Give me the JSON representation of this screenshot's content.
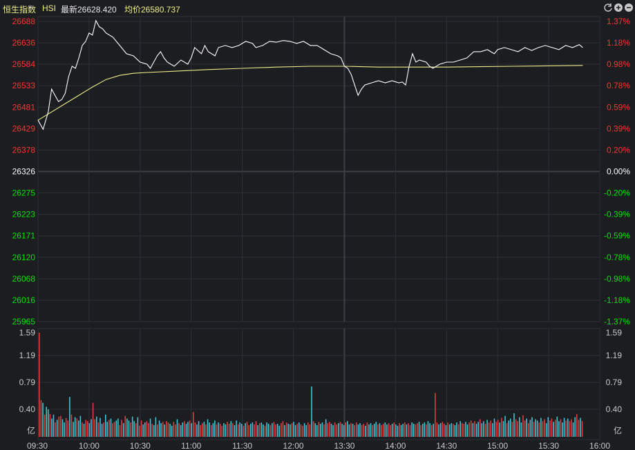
{
  "header": {
    "name": "恒生指数",
    "code": "HSI",
    "latest": "最新26628.420",
    "average": "均价26580.737"
  },
  "colors": {
    "up": "#ff3232",
    "down": "#00e600",
    "neutral": "#ffffff",
    "price_line": "#ffffff",
    "avg_line": "#f0f08c",
    "vol_up": "#e04040",
    "vol_down": "#40c8d8",
    "grid": "#2e3036"
  },
  "chart_data": [
    {
      "type": "line",
      "title": "恒生指数 HSI",
      "prev_close": 26326,
      "ylim": [
        25965,
        26688
      ],
      "y_ticks_left": [
        "26688",
        "26636",
        "26584",
        "26533",
        "26481",
        "26429",
        "26378",
        "26326",
        "26275",
        "26223",
        "26171",
        "26120",
        "26068",
        "26016",
        "25965"
      ],
      "y_ticks_right": [
        "1.37%",
        "1.18%",
        "0.98%",
        "0.78%",
        "0.59%",
        "0.39%",
        "0.20%",
        "0.00%",
        "-0.20%",
        "-0.39%",
        "-0.59%",
        "-0.78%",
        "-0.98%",
        "-1.18%",
        "-1.37%"
      ],
      "x_ticks": [
        "09:30",
        "10:00",
        "10:30",
        "11:00",
        "11:30",
        "12:00",
        "13:30",
        "14:00",
        "14:30",
        "15:00",
        "15:30",
        "16:00"
      ],
      "series": [
        {
          "values": [
            [
              0,
              26450
            ],
            [
              3,
              26428
            ],
            [
              6,
              26470
            ],
            [
              8,
              26525
            ],
            [
              10,
              26510
            ],
            [
              12,
              26495
            ],
            [
              14,
              26500
            ],
            [
              16,
              26515
            ],
            [
              18,
              26555
            ],
            [
              20,
              26580
            ],
            [
              22,
              26575
            ],
            [
              24,
              26600
            ],
            [
              26,
              26630
            ],
            [
              28,
              26640
            ],
            [
              30,
              26660
            ],
            [
              32,
              26655
            ],
            [
              34,
              26690
            ],
            [
              36,
              26675
            ],
            [
              38,
              26670
            ],
            [
              40,
              26660
            ],
            [
              44,
              26650
            ],
            [
              48,
              26630
            ],
            [
              52,
              26610
            ],
            [
              56,
              26605
            ],
            [
              60,
              26590
            ],
            [
              64,
              26585
            ],
            [
              66,
              26575
            ],
            [
              68,
              26590
            ],
            [
              70,
              26605
            ],
            [
              72,
              26615
            ],
            [
              74,
              26600
            ],
            [
              76,
              26590
            ],
            [
              78,
              26585
            ],
            [
              80,
              26580
            ],
            [
              84,
              26595
            ],
            [
              88,
              26585
            ],
            [
              90,
              26600
            ],
            [
              92,
              26625
            ],
            [
              96,
              26610
            ],
            [
              98,
              26630
            ],
            [
              100,
              26615
            ],
            [
              104,
              26605
            ],
            [
              106,
              26625
            ],
            [
              110,
              26630
            ],
            [
              114,
              26625
            ],
            [
              118,
              26630
            ],
            [
              122,
              26640
            ],
            [
              126,
              26635
            ],
            [
              128,
              26625
            ],
            [
              132,
              26630
            ],
            [
              136,
              26640
            ],
            [
              140,
              26638
            ],
            [
              144,
              26642
            ],
            [
              148,
              26640
            ],
            [
              152,
              26635
            ],
            [
              156,
              26640
            ],
            [
              160,
              26630
            ],
            [
              164,
              26630
            ],
            [
              168,
              26620
            ],
            [
              172,
              26610
            ],
            [
              176,
              26605
            ],
            [
              178,
              26600
            ],
            [
              180,
              26580
            ],
            [
              182,
              26575
            ],
            [
              184,
              26560
            ],
            [
              186,
              26535
            ],
            [
              188,
              26510
            ],
            [
              190,
              26525
            ],
            [
              192,
              26535
            ],
            [
              196,
              26540
            ],
            [
              200,
              26545
            ],
            [
              204,
              26540
            ],
            [
              208,
              26545
            ],
            [
              212,
              26540
            ],
            [
              214,
              26542
            ],
            [
              216,
              26535
            ],
            [
              218,
              26580
            ],
            [
              220,
              26610
            ],
            [
              222,
              26590
            ],
            [
              224,
              26595
            ],
            [
              228,
              26590
            ],
            [
              230,
              26580
            ],
            [
              232,
              26575
            ],
            [
              236,
              26585
            ],
            [
              240,
              26590
            ],
            [
              244,
              26590
            ],
            [
              248,
              26595
            ],
            [
              252,
              26600
            ],
            [
              256,
              26615
            ],
            [
              260,
              26615
            ],
            [
              264,
              26620
            ],
            [
              268,
              26610
            ],
            [
              270,
              26620
            ],
            [
              274,
              26625
            ],
            [
              278,
              26620
            ],
            [
              282,
              26615
            ],
            [
              286,
              26625
            ],
            [
              290,
              26618
            ],
            [
              294,
              26625
            ],
            [
              298,
              26630
            ],
            [
              302,
              26625
            ],
            [
              306,
              26620
            ],
            [
              310,
              26630
            ],
            [
              314,
              26625
            ],
            [
              318,
              26632
            ],
            [
              320,
              26625
            ]
          ]
        },
        {
          "values": [
            [
              0,
              26450
            ],
            [
              8,
              26470
            ],
            [
              16,
              26490
            ],
            [
              24,
              26510
            ],
            [
              32,
              26530
            ],
            [
              40,
              26548
            ],
            [
              48,
              26558
            ],
            [
              56,
              26563
            ],
            [
              64,
              26565
            ],
            [
              80,
              26568
            ],
            [
              100,
              26572
            ],
            [
              120,
              26575
            ],
            [
              140,
              26578
            ],
            [
              160,
              26580
            ],
            [
              180,
              26580
            ],
            [
              200,
              26578
            ],
            [
              220,
              26578
            ],
            [
              240,
              26578
            ],
            [
              260,
              26579
            ],
            [
              280,
              26580
            ],
            [
              300,
              26581
            ],
            [
              320,
              26582
            ]
          ]
        }
      ]
    },
    {
      "type": "bar",
      "title": "volume",
      "ylim": [
        0,
        1.59
      ],
      "y_ticks": [
        "1.59",
        "1.19",
        "0.79",
        "0.40",
        "亿"
      ],
      "values": [
        1.59,
        0.56,
        0.52,
        0.34,
        0.46,
        0.42,
        0.35,
        0.28,
        0.34,
        0.22,
        0.26,
        0.31,
        0.32,
        0.27,
        0.22,
        0.29,
        0.25,
        0.61,
        0.34,
        0.23,
        0.3,
        0.28,
        0.25,
        0.32,
        0.22,
        0.2,
        0.26,
        0.24,
        0.21,
        0.27,
        0.52,
        0.27,
        0.31,
        0.22,
        0.29,
        0.2,
        0.22,
        0.34,
        0.23,
        0.26,
        0.28,
        0.21,
        0.23,
        0.25,
        0.28,
        0.18,
        0.26,
        0.21,
        0.32,
        0.28,
        0.25,
        0.22,
        0.31,
        0.24,
        0.21,
        0.3,
        0.17,
        0.25,
        0.19,
        0.22,
        0.24,
        0.21,
        0.28,
        0.2,
        0.18,
        0.3,
        0.19,
        0.25,
        0.21,
        0.23,
        0.19,
        0.24,
        0.22,
        0.2,
        0.17,
        0.23,
        0.19,
        0.27,
        0.21,
        0.18,
        0.22,
        0.24,
        0.2,
        0.23,
        0.25,
        0.21,
        0.38,
        0.22,
        0.19,
        0.24,
        0.18,
        0.21,
        0.23,
        0.19,
        0.27,
        0.22,
        0.18,
        0.21,
        0.25,
        0.19,
        0.22,
        0.2,
        0.17,
        0.21,
        0.19,
        0.23,
        0.2,
        0.24,
        0.21,
        0.18,
        0.25,
        0.19,
        0.22,
        0.2,
        0.17,
        0.21,
        0.23,
        0.18,
        0.2,
        0.22,
        0.19,
        0.24,
        0.18,
        0.21,
        0.22,
        0.19,
        0.17,
        0.22,
        0.2,
        0.18,
        0.21,
        0.23,
        0.19,
        0.2,
        0.17,
        0.21,
        0.24,
        0.18,
        0.22,
        0.2,
        0.19,
        0.21,
        0.23,
        0.18,
        0.2,
        0.22,
        0.19,
        0.17,
        0.21,
        0.18,
        0.22,
        0.19,
        0.77,
        0.24,
        0.21,
        0.18,
        0.23,
        0.2,
        0.22,
        0.19,
        0.27,
        0.21,
        0.23,
        0.2,
        0.18,
        0.22,
        0.19,
        0.21,
        0.23,
        0.2,
        0.18,
        0.22,
        0.24,
        0.19,
        0.21,
        0.2,
        0.18,
        0.22,
        0.19,
        0.21,
        0.18,
        0.2,
        0.17,
        0.22,
        0.19,
        0.21,
        0.18,
        0.2,
        0.23,
        0.19,
        0.21,
        0.18,
        0.2,
        0.22,
        0.19,
        0.21,
        0.18,
        0.2,
        0.22,
        0.19,
        0.17,
        0.21,
        0.18,
        0.2,
        0.22,
        0.19,
        0.21,
        0.18,
        0.22,
        0.2,
        0.19,
        0.21,
        0.23,
        0.18,
        0.2,
        0.22,
        0.19,
        0.24,
        0.21,
        0.18,
        0.2,
        0.67,
        0.22,
        0.19,
        0.21,
        0.23,
        0.2,
        0.18,
        0.22,
        0.19,
        0.21,
        0.2,
        0.18,
        0.22,
        0.19,
        0.24,
        0.21,
        0.2,
        0.23,
        0.19,
        0.22,
        0.25,
        0.21,
        0.24,
        0.2,
        0.23,
        0.27,
        0.21,
        0.24,
        0.2,
        0.26,
        0.22,
        0.25,
        0.21,
        0.28,
        0.23,
        0.26,
        0.22,
        0.29,
        0.24,
        0.32,
        0.21,
        0.25,
        0.28,
        0.23,
        0.36,
        0.27,
        0.24,
        0.3,
        0.22,
        0.33,
        0.25,
        0.28,
        0.21,
        0.26,
        0.3,
        0.23,
        0.27,
        0.25,
        0.22,
        0.29,
        0.24,
        0.27,
        0.21,
        0.3,
        0.25,
        0.28,
        0.23,
        0.26,
        0.31,
        0.24,
        0.27,
        0.22,
        0.29,
        0.25,
        0.28,
        0.24,
        0.27,
        0.22,
        0.3,
        0.35,
        0.26,
        0.29,
        0.24
      ]
    }
  ]
}
